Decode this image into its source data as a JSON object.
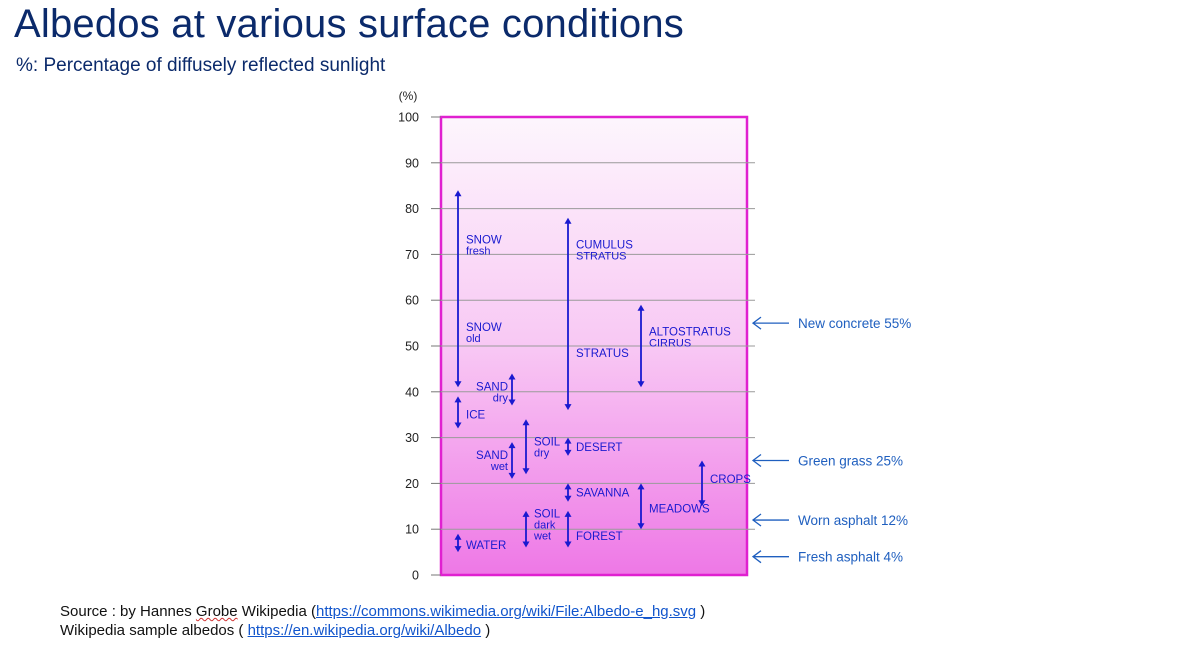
{
  "title": "Albedos at various surface conditions",
  "subtitle": "%: Percentage of diffusely reflected sunlight",
  "chart_data": {
    "type": "range",
    "ylabel": "(%)",
    "ylim": [
      0,
      100
    ],
    "yticks": [
      0,
      10,
      20,
      30,
      40,
      50,
      60,
      70,
      80,
      90,
      100
    ],
    "grid": true,
    "colors": {
      "frame": "#e020d0",
      "arrow": "#1a1ad0",
      "label": "#1a1ad0",
      "callout": "#1f5fbf"
    },
    "ranges": [
      {
        "col": 1,
        "low": 41,
        "high": 84,
        "labels": [
          {
            "lines": [
              "SNOW",
              "fresh"
            ],
            "y": 72,
            "side": "right"
          },
          {
            "lines": [
              "SNOW",
              "old"
            ],
            "y": 53,
            "side": "right"
          }
        ]
      },
      {
        "col": 1,
        "low": 32,
        "high": 39,
        "labels": [
          {
            "lines": [
              "ICE"
            ],
            "y": 35,
            "side": "right"
          }
        ]
      },
      {
        "col": 1,
        "low": 5,
        "high": 9,
        "labels": [
          {
            "lines": [
              "WATER"
            ],
            "y": 6.5,
            "side": "right"
          }
        ]
      },
      {
        "col": 2,
        "low": 37,
        "high": 44,
        "labels": [
          {
            "lines": [
              "SAND",
              "dry"
            ],
            "y": 40,
            "side": "left"
          }
        ]
      },
      {
        "col": 2,
        "low": 21,
        "high": 29,
        "labels": [
          {
            "lines": [
              "SAND",
              "wet"
            ],
            "y": 25,
            "side": "left"
          }
        ]
      },
      {
        "col": 3,
        "low": 22,
        "high": 34,
        "labels": [
          {
            "lines": [
              "SOIL",
              "dry"
            ],
            "y": 28,
            "side": "right"
          }
        ]
      },
      {
        "col": 3,
        "low": 6,
        "high": 14,
        "labels": [
          {
            "lines": [
              "SOIL",
              "dark",
              "wet"
            ],
            "y": 11,
            "side": "right"
          }
        ]
      },
      {
        "col": 4,
        "low": 36,
        "high": 78,
        "labels": [
          {
            "lines": [
              "CUMULUS",
              "STRATUS"
            ],
            "y": 71,
            "side": "right"
          },
          {
            "lines": [
              "STRATUS"
            ],
            "y": 48.5,
            "side": "right"
          }
        ]
      },
      {
        "col": 4,
        "low": 26,
        "high": 30,
        "labels": [
          {
            "lines": [
              "DESERT"
            ],
            "y": 28,
            "side": "right"
          }
        ]
      },
      {
        "col": 4,
        "low": 16,
        "high": 20,
        "labels": [
          {
            "lines": [
              "SAVANNA"
            ],
            "y": 18,
            "side": "right"
          }
        ]
      },
      {
        "col": 4,
        "low": 6,
        "high": 14,
        "labels": [
          {
            "lines": [
              "FOREST"
            ],
            "y": 8.5,
            "side": "right"
          }
        ]
      },
      {
        "col": 5,
        "low": 41,
        "high": 59,
        "labels": [
          {
            "lines": [
              "ALTOSTRATUS",
              "CIRRUS"
            ],
            "y": 52,
            "side": "right"
          }
        ]
      },
      {
        "col": 5,
        "low": 10,
        "high": 20,
        "labels": [
          {
            "lines": [
              "MEADOWS"
            ],
            "y": 14.5,
            "side": "right"
          }
        ]
      },
      {
        "col": 6,
        "low": 15,
        "high": 25,
        "labels": [
          {
            "lines": [
              "CROPS"
            ],
            "y": 21,
            "side": "right"
          }
        ]
      }
    ],
    "callouts": [
      {
        "label": "New concrete 55%",
        "y": 55
      },
      {
        "label": "Green grass 25%",
        "y": 25
      },
      {
        "label": "Worn asphalt 12%",
        "y": 12
      },
      {
        "label": "Fresh asphalt 4%",
        "y": 4
      }
    ]
  },
  "source": {
    "line1_prefix": "Source : by Hannes ",
    "line1_squiggle": "Grobe",
    "line1_mid": " Wikipedia  (",
    "line1_link": "https://commons.wikimedia.org/wiki/File:Albedo-e_hg.svg",
    "line1_suffix": " )",
    "line2_prefix": "Wikipedia sample albedos  ( ",
    "line2_link": "https://en.wikipedia.org/wiki/Albedo",
    "line2_suffix": " )"
  }
}
